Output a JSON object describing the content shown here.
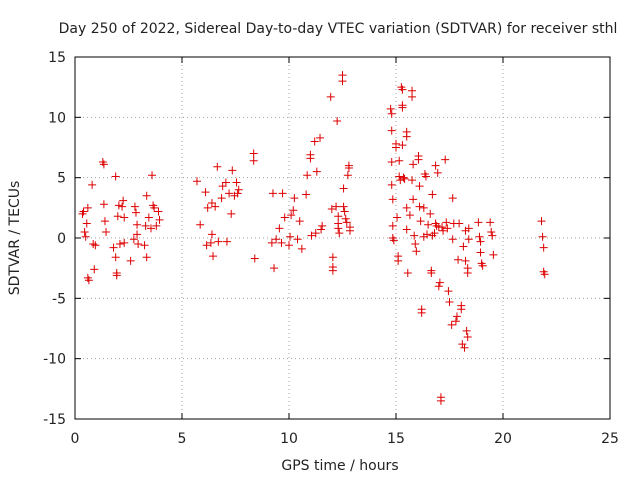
{
  "chart_data": {
    "type": "scatter",
    "title": "Day 250 of 2022, Sidereal Day-to-day VTEC variation (SDTVAR) for receiver sthl",
    "xlabel": "GPS time / hours",
    "ylabel": "SDTVAR / TECUs",
    "xlim": [
      0,
      25
    ],
    "ylim": [
      -15,
      15
    ],
    "xticks": [
      "0",
      "5",
      "10",
      "15",
      "20",
      "25"
    ],
    "yticks": [
      "-15",
      "-10",
      "-5",
      "0",
      "5",
      "10",
      "15"
    ],
    "grid": true,
    "marker": "plus",
    "color": "#dd0000",
    "series": [
      {
        "name": "SDTVAR",
        "points": [
          [
            0.35,
            2.0
          ],
          [
            0.4,
            2.2
          ],
          [
            0.45,
            0.5
          ],
          [
            0.5,
            0.1
          ],
          [
            0.55,
            1.2
          ],
          [
            0.6,
            2.5
          ],
          [
            0.6,
            -3.3
          ],
          [
            0.65,
            -3.5
          ],
          [
            0.8,
            4.4
          ],
          [
            0.85,
            -0.5
          ],
          [
            0.9,
            -2.6
          ],
          [
            0.95,
            -0.6
          ],
          [
            1.3,
            6.3
          ],
          [
            1.35,
            6.1
          ],
          [
            1.35,
            2.8
          ],
          [
            1.4,
            1.4
          ],
          [
            1.45,
            0.5
          ],
          [
            1.8,
            -0.8
          ],
          [
            1.9,
            5.1
          ],
          [
            1.9,
            -1.6
          ],
          [
            1.95,
            -2.9
          ],
          [
            1.95,
            -3.1
          ],
          [
            2.0,
            1.8
          ],
          [
            2.05,
            2.7
          ],
          [
            2.1,
            -0.5
          ],
          [
            2.2,
            2.6
          ],
          [
            2.25,
            3.1
          ],
          [
            2.3,
            1.7
          ],
          [
            2.3,
            -0.4
          ],
          [
            2.6,
            -1.9
          ],
          [
            2.75,
            -0.1
          ],
          [
            2.8,
            2.6
          ],
          [
            2.85,
            2.1
          ],
          [
            2.9,
            1.1
          ],
          [
            2.9,
            0.3
          ],
          [
            2.95,
            -0.5
          ],
          [
            3.25,
            -0.6
          ],
          [
            3.3,
            1.0
          ],
          [
            3.35,
            3.5
          ],
          [
            3.35,
            -1.6
          ],
          [
            3.45,
            1.7
          ],
          [
            3.55,
            0.8
          ],
          [
            3.6,
            5.2
          ],
          [
            3.65,
            2.7
          ],
          [
            3.7,
            2.5
          ],
          [
            3.8,
            1.0
          ],
          [
            3.9,
            2.2
          ],
          [
            3.95,
            1.5
          ],
          [
            5.7,
            4.7
          ],
          [
            5.85,
            1.1
          ],
          [
            6.1,
            3.8
          ],
          [
            6.15,
            -0.6
          ],
          [
            6.2,
            2.5
          ],
          [
            6.35,
            -0.4
          ],
          [
            6.4,
            2.9
          ],
          [
            6.4,
            0.3
          ],
          [
            6.45,
            -1.5
          ],
          [
            6.55,
            2.6
          ],
          [
            6.65,
            5.9
          ],
          [
            6.7,
            -0.3
          ],
          [
            6.85,
            3.3
          ],
          [
            6.9,
            4.3
          ],
          [
            7.05,
            4.6
          ],
          [
            7.1,
            -0.3
          ],
          [
            7.2,
            3.7
          ],
          [
            7.3,
            2.0
          ],
          [
            7.35,
            5.6
          ],
          [
            7.45,
            3.5
          ],
          [
            7.55,
            4.6
          ],
          [
            7.6,
            3.7
          ],
          [
            7.65,
            4.0
          ],
          [
            8.35,
            7.0
          ],
          [
            8.35,
            6.4
          ],
          [
            8.4,
            -1.7
          ],
          [
            9.2,
            -0.4
          ],
          [
            9.25,
            3.7
          ],
          [
            9.3,
            -2.5
          ],
          [
            9.4,
            -0.1
          ],
          [
            9.55,
            0.8
          ],
          [
            9.65,
            -0.4
          ],
          [
            9.7,
            3.7
          ],
          [
            9.8,
            1.7
          ],
          [
            10.0,
            -0.6
          ],
          [
            10.05,
            0.1
          ],
          [
            10.1,
            1.9
          ],
          [
            10.2,
            2.3
          ],
          [
            10.25,
            3.3
          ],
          [
            10.4,
            -0.1
          ],
          [
            10.5,
            1.4
          ],
          [
            10.6,
            -0.9
          ],
          [
            10.8,
            3.6
          ],
          [
            10.85,
            5.2
          ],
          [
            11.0,
            6.9
          ],
          [
            11.0,
            6.6
          ],
          [
            11.05,
            0.2
          ],
          [
            11.2,
            8.0
          ],
          [
            11.3,
            5.5
          ],
          [
            11.25,
            0.4
          ],
          [
            11.45,
            8.3
          ],
          [
            11.5,
            0.7
          ],
          [
            11.55,
            1.0
          ],
          [
            11.95,
            11.7
          ],
          [
            12.0,
            2.4
          ],
          [
            12.05,
            -1.6
          ],
          [
            12.05,
            -2.4
          ],
          [
            12.05,
            -2.7
          ],
          [
            12.2,
            2.6
          ],
          [
            12.25,
            9.7
          ],
          [
            12.3,
            1.8
          ],
          [
            12.3,
            1.2
          ],
          [
            12.3,
            0.8
          ],
          [
            12.35,
            0.4
          ],
          [
            12.5,
            13.5
          ],
          [
            12.5,
            13.0
          ],
          [
            12.55,
            4.1
          ],
          [
            12.55,
            2.6
          ],
          [
            12.6,
            2.2
          ],
          [
            12.65,
            1.6
          ],
          [
            12.7,
            1.3
          ],
          [
            12.75,
            5.2
          ],
          [
            12.8,
            6.0
          ],
          [
            12.8,
            5.8
          ],
          [
            12.85,
            0.9
          ],
          [
            12.85,
            0.6
          ],
          [
            14.75,
            10.7
          ],
          [
            14.8,
            10.3
          ],
          [
            14.8,
            8.9
          ],
          [
            14.8,
            6.3
          ],
          [
            14.8,
            4.4
          ],
          [
            14.85,
            3.2
          ],
          [
            14.85,
            1.0
          ],
          [
            14.85,
            0.0
          ],
          [
            14.9,
            -0.2
          ],
          [
            15.0,
            7.8
          ],
          [
            15.0,
            7.5
          ],
          [
            15.05,
            1.7
          ],
          [
            15.1,
            -1.5
          ],
          [
            15.1,
            -1.9
          ],
          [
            15.15,
            6.4
          ],
          [
            15.15,
            5.1
          ],
          [
            15.2,
            4.8
          ],
          [
            15.25,
            12.5
          ],
          [
            15.3,
            12.3
          ],
          [
            15.3,
            11.0
          ],
          [
            15.3,
            10.8
          ],
          [
            15.3,
            7.7
          ],
          [
            15.35,
            5.0
          ],
          [
            15.4,
            4.9
          ],
          [
            15.5,
            8.8
          ],
          [
            15.5,
            8.4
          ],
          [
            15.5,
            2.5
          ],
          [
            15.5,
            0.7
          ],
          [
            15.55,
            -2.9
          ],
          [
            15.65,
            1.9
          ],
          [
            15.75,
            12.2
          ],
          [
            15.75,
            11.7
          ],
          [
            15.75,
            4.8
          ],
          [
            15.8,
            6.1
          ],
          [
            15.8,
            3.2
          ],
          [
            15.85,
            0.2
          ],
          [
            15.9,
            -0.5
          ],
          [
            15.95,
            -1.1
          ],
          [
            16.05,
            6.8
          ],
          [
            16.05,
            6.5
          ],
          [
            16.1,
            4.3
          ],
          [
            16.1,
            2.6
          ],
          [
            16.15,
            1.4
          ],
          [
            16.2,
            -5.9
          ],
          [
            16.2,
            -6.2
          ],
          [
            16.3,
            2.5
          ],
          [
            16.3,
            0.1
          ],
          [
            16.35,
            5.3
          ],
          [
            16.4,
            5.1
          ],
          [
            16.45,
            0.3
          ],
          [
            16.5,
            1.1
          ],
          [
            16.6,
            2.0
          ],
          [
            16.65,
            -2.7
          ],
          [
            16.65,
            -2.9
          ],
          [
            16.7,
            3.6
          ],
          [
            16.7,
            0.2
          ],
          [
            16.8,
            0.4
          ],
          [
            16.85,
            6.0
          ],
          [
            16.85,
            1.2
          ],
          [
            16.9,
            1.0
          ],
          [
            16.95,
            5.4
          ],
          [
            17.0,
            0.9
          ],
          [
            17.05,
            -3.7
          ],
          [
            17.0,
            -4.0
          ],
          [
            17.1,
            -13.2
          ],
          [
            17.1,
            -13.5
          ],
          [
            17.15,
            0.9
          ],
          [
            17.2,
            0.6
          ],
          [
            17.3,
            6.5
          ],
          [
            17.35,
            1.3
          ],
          [
            17.4,
            0.8
          ],
          [
            17.45,
            -4.4
          ],
          [
            17.5,
            -5.3
          ],
          [
            17.6,
            -7.2
          ],
          [
            17.65,
            3.3
          ],
          [
            17.65,
            -0.1
          ],
          [
            17.7,
            1.2
          ],
          [
            17.8,
            -6.9
          ],
          [
            17.85,
            -6.5
          ],
          [
            17.9,
            -1.8
          ],
          [
            17.95,
            1.2
          ],
          [
            18.05,
            -5.6
          ],
          [
            18.05,
            -5.9
          ],
          [
            18.1,
            -8.8
          ],
          [
            18.15,
            -0.7
          ],
          [
            18.2,
            -9.1
          ],
          [
            18.25,
            0.6
          ],
          [
            18.25,
            -1.9
          ],
          [
            18.3,
            -7.7
          ],
          [
            18.35,
            -8.2
          ],
          [
            18.35,
            -2.5
          ],
          [
            18.35,
            -2.9
          ],
          [
            18.4,
            0.8
          ],
          [
            18.4,
            -0.1
          ],
          [
            18.85,
            1.3
          ],
          [
            18.9,
            0.1
          ],
          [
            18.95,
            -0.3
          ],
          [
            18.95,
            -1.2
          ],
          [
            19.0,
            -2.1
          ],
          [
            19.05,
            -2.3
          ],
          [
            19.4,
            1.3
          ],
          [
            19.45,
            0.5
          ],
          [
            19.5,
            0.2
          ],
          [
            19.55,
            -1.4
          ],
          [
            21.8,
            1.4
          ],
          [
            21.85,
            0.1
          ],
          [
            21.9,
            -0.8
          ],
          [
            21.9,
            -2.8
          ],
          [
            21.95,
            -3.0
          ]
        ]
      }
    ]
  }
}
